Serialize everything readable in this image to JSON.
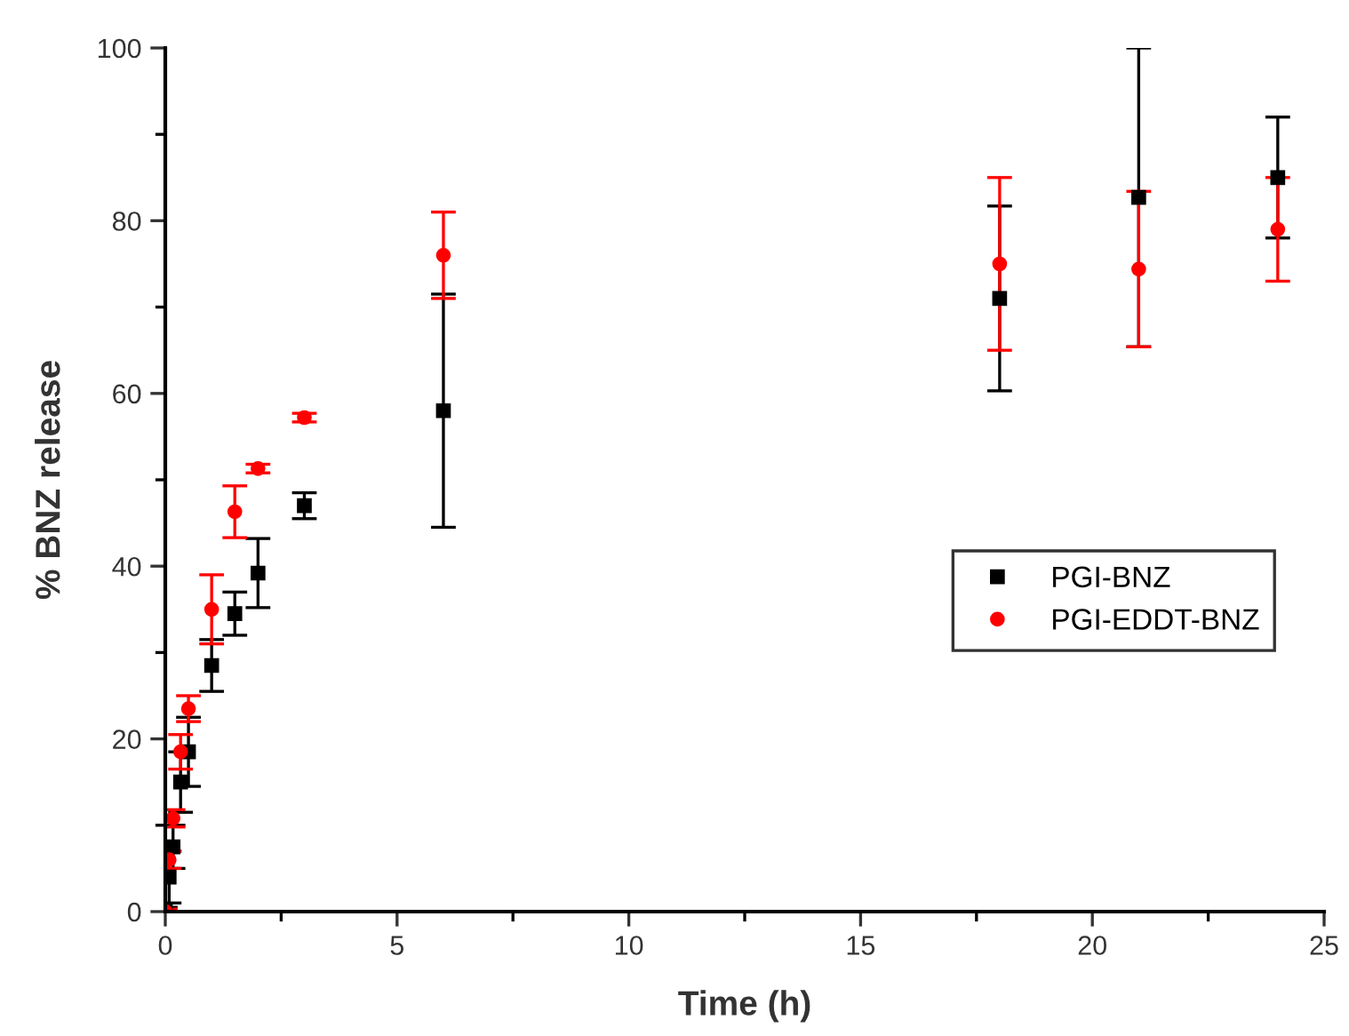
{
  "chart_data": {
    "type": "scatter",
    "xlabel": "Time (h)",
    "ylabel": "% BNZ release",
    "x": [
      0,
      0.083,
      0.167,
      0.33,
      0.5,
      1,
      1.5,
      2,
      3,
      6,
      18,
      21,
      24
    ],
    "series": [
      {
        "name": "PGI-BNZ",
        "color": "#000000",
        "marker": "square",
        "values": [
          0,
          4,
          7.5,
          15,
          18.5,
          28.5,
          34.5,
          39.2,
          47,
          58,
          71,
          82.7,
          85
        ],
        "errors": [
          0.5,
          3,
          2.5,
          3.5,
          4,
          3,
          2.5,
          4,
          1.5,
          13.5,
          10.7,
          17.3,
          7
        ]
      },
      {
        "name": "PGI-EDDT-BNZ",
        "color": "#ff0000",
        "marker": "circle",
        "values": [
          0,
          6,
          10.8,
          18.5,
          23.5,
          35,
          46.3,
          51.3,
          57.2,
          76,
          75,
          74.4,
          79
        ],
        "errors": [
          0.3,
          1,
          1,
          2,
          1.5,
          4,
          3,
          0.5,
          0.5,
          5,
          10,
          9,
          6
        ]
      }
    ],
    "xlim": [
      0,
      25
    ],
    "ylim": [
      0,
      100
    ],
    "xticks": [
      0,
      5,
      10,
      15,
      20,
      25
    ],
    "yticks": [
      0,
      20,
      40,
      60,
      80,
      100
    ],
    "grid": false,
    "legend": "right"
  }
}
